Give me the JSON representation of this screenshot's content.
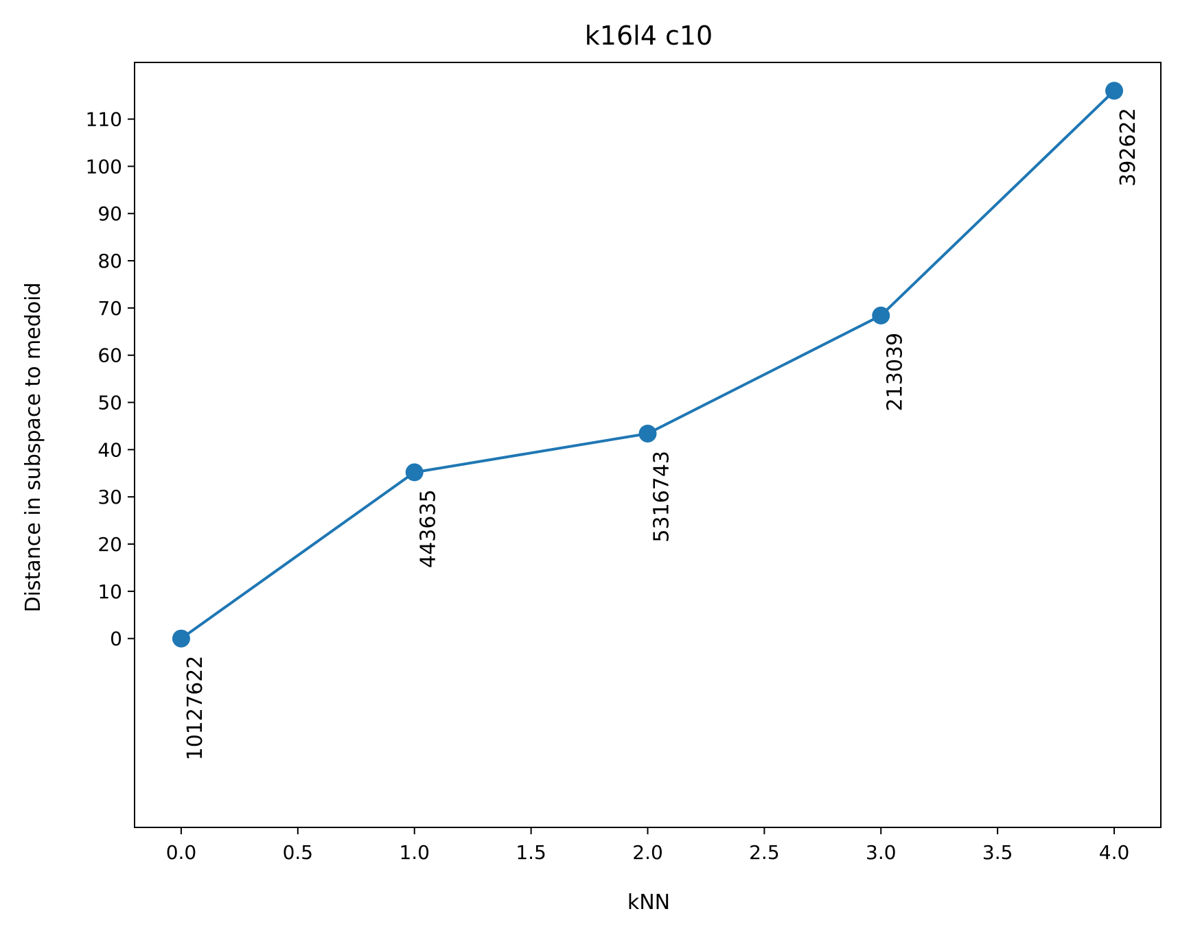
{
  "chart_data": {
    "type": "line",
    "title": "k16l4 c10",
    "xlabel": "kNN",
    "ylabel": "Distance in subspace to medoid",
    "xlim": [
      -0.2,
      4.2
    ],
    "ylim": [
      -40,
      122
    ],
    "xticks": [
      0.0,
      0.5,
      1.0,
      1.5,
      2.0,
      2.5,
      3.0,
      3.5,
      4.0
    ],
    "xtick_labels": [
      "0.0",
      "0.5",
      "1.0",
      "1.5",
      "2.0",
      "2.5",
      "3.0",
      "3.5",
      "4.0"
    ],
    "yticks": [
      0,
      10,
      20,
      30,
      40,
      50,
      60,
      70,
      80,
      90,
      100,
      110
    ],
    "ytick_labels": [
      "0",
      "10",
      "20",
      "30",
      "40",
      "50",
      "60",
      "70",
      "80",
      "90",
      "100",
      "110"
    ],
    "grid": false,
    "series": [
      {
        "color": "#1f77b4",
        "marker": "circle",
        "x": [
          0,
          1,
          2,
          3,
          4
        ],
        "y": [
          0,
          35.2,
          43.4,
          68.4,
          116.0
        ],
        "point_labels": [
          "10127622",
          "443635",
          "5316743",
          "213039",
          "392622"
        ]
      }
    ]
  }
}
